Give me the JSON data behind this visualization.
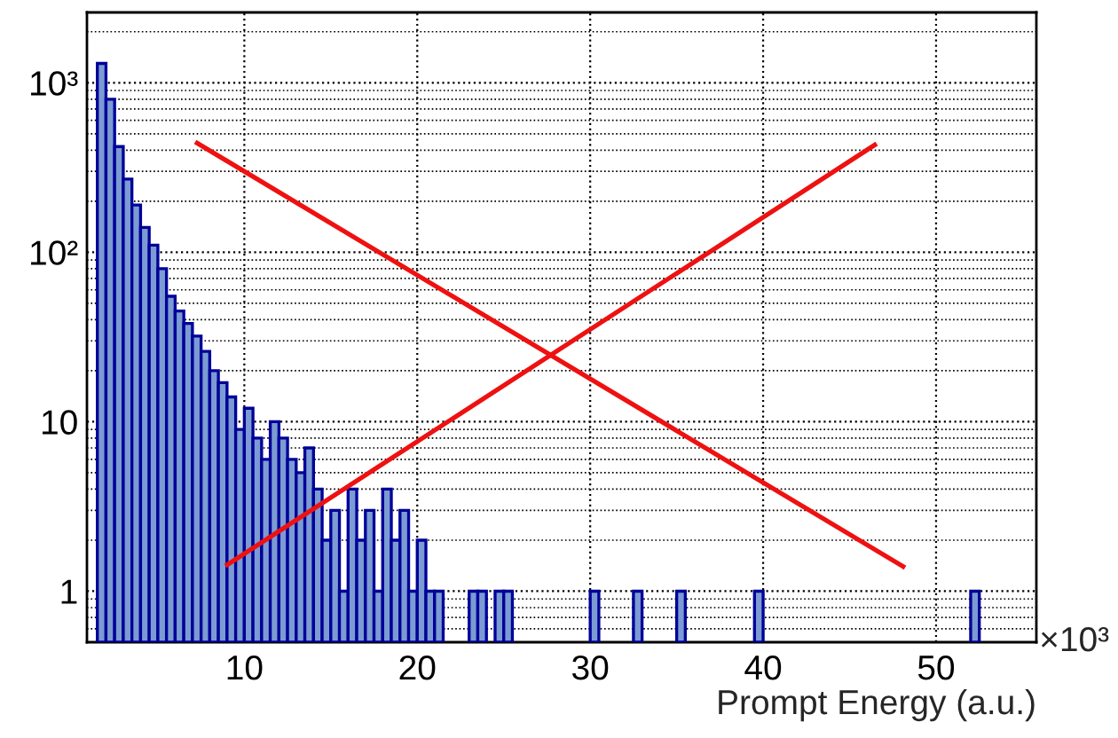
{
  "chart_data": {
    "type": "histogram",
    "xlabel": "Prompt Energy (a.u.)",
    "annotations": [
      "×10³"
    ],
    "bins": [
      1.0,
      1.5,
      2.0,
      2.5,
      3.0,
      3.5,
      4.0,
      4.5,
      5.0,
      5.5,
      6.0,
      6.5,
      7.0,
      7.5,
      8.0,
      8.5,
      9.0,
      9.5,
      10.0,
      10.5,
      11.0,
      11.5,
      12.0,
      12.5,
      13.0,
      13.5,
      14.0,
      14.5,
      15.0,
      15.5,
      16.0,
      16.5,
      17.0,
      17.5,
      18.0,
      18.5,
      19.0,
      19.5,
      20.0,
      20.5,
      21.0,
      21.5,
      22.0,
      22.5,
      23.0,
      23.5,
      24.0,
      24.5,
      25.0,
      25.5,
      26.0,
      26.5,
      27.0,
      27.5,
      28.0,
      28.5,
      29.0,
      29.5,
      30.0,
      30.5,
      31.0,
      31.5,
      32.0,
      32.5,
      33.0,
      33.5,
      34.0,
      34.5,
      35.0,
      35.5,
      36.0,
      36.5,
      37.0,
      37.5,
      38.0,
      38.5,
      39.0,
      39.5,
      40.0,
      40.5,
      41.0,
      41.5,
      42.0,
      42.5,
      43.0,
      43.5,
      44.0,
      44.5,
      45.0,
      45.5,
      46.0,
      46.5,
      47.0,
      47.5,
      48.0,
      48.5,
      49.0,
      49.5,
      50.0,
      50.5,
      51.0,
      51.5,
      52.0,
      52.5,
      53.0
    ],
    "values": [
      null,
      1300,
      800,
      420,
      270,
      190,
      140,
      110,
      80,
      55,
      45,
      38,
      32,
      26,
      20,
      17,
      14,
      9,
      12,
      8,
      6,
      10,
      8,
      6,
      5,
      7,
      4,
      2,
      3,
      1,
      4,
      2,
      3,
      1,
      4,
      2,
      3,
      1,
      2,
      1,
      1,
      null,
      null,
      null,
      1,
      1,
      null,
      1,
      1,
      null,
      null,
      null,
      null,
      null,
      null,
      null,
      null,
      null,
      1,
      null,
      null,
      null,
      null,
      1,
      null,
      null,
      null,
      null,
      1,
      null,
      null,
      null,
      null,
      null,
      null,
      null,
      null,
      1,
      null,
      null,
      null,
      null,
      null,
      null,
      null,
      null,
      null,
      null,
      null,
      null,
      null,
      null,
      null,
      null,
      null,
      null,
      null,
      null,
      null,
      null,
      null,
      null,
      1,
      null
    ],
    "color": "#7b9bd2",
    "log": "y",
    "grid": true,
    "xlim": [
      0.9,
      55.8
    ],
    "ylim": [
      0.5,
      2600
    ],
    "xticks": [
      10,
      20,
      30,
      40,
      50
    ],
    "yticks": [
      {
        "value": 1,
        "label": "1"
      },
      {
        "value": 10,
        "label": "10"
      },
      {
        "value": 100,
        "label": "10²"
      },
      {
        "value": 1000,
        "label": "10³"
      }
    ]
  }
}
